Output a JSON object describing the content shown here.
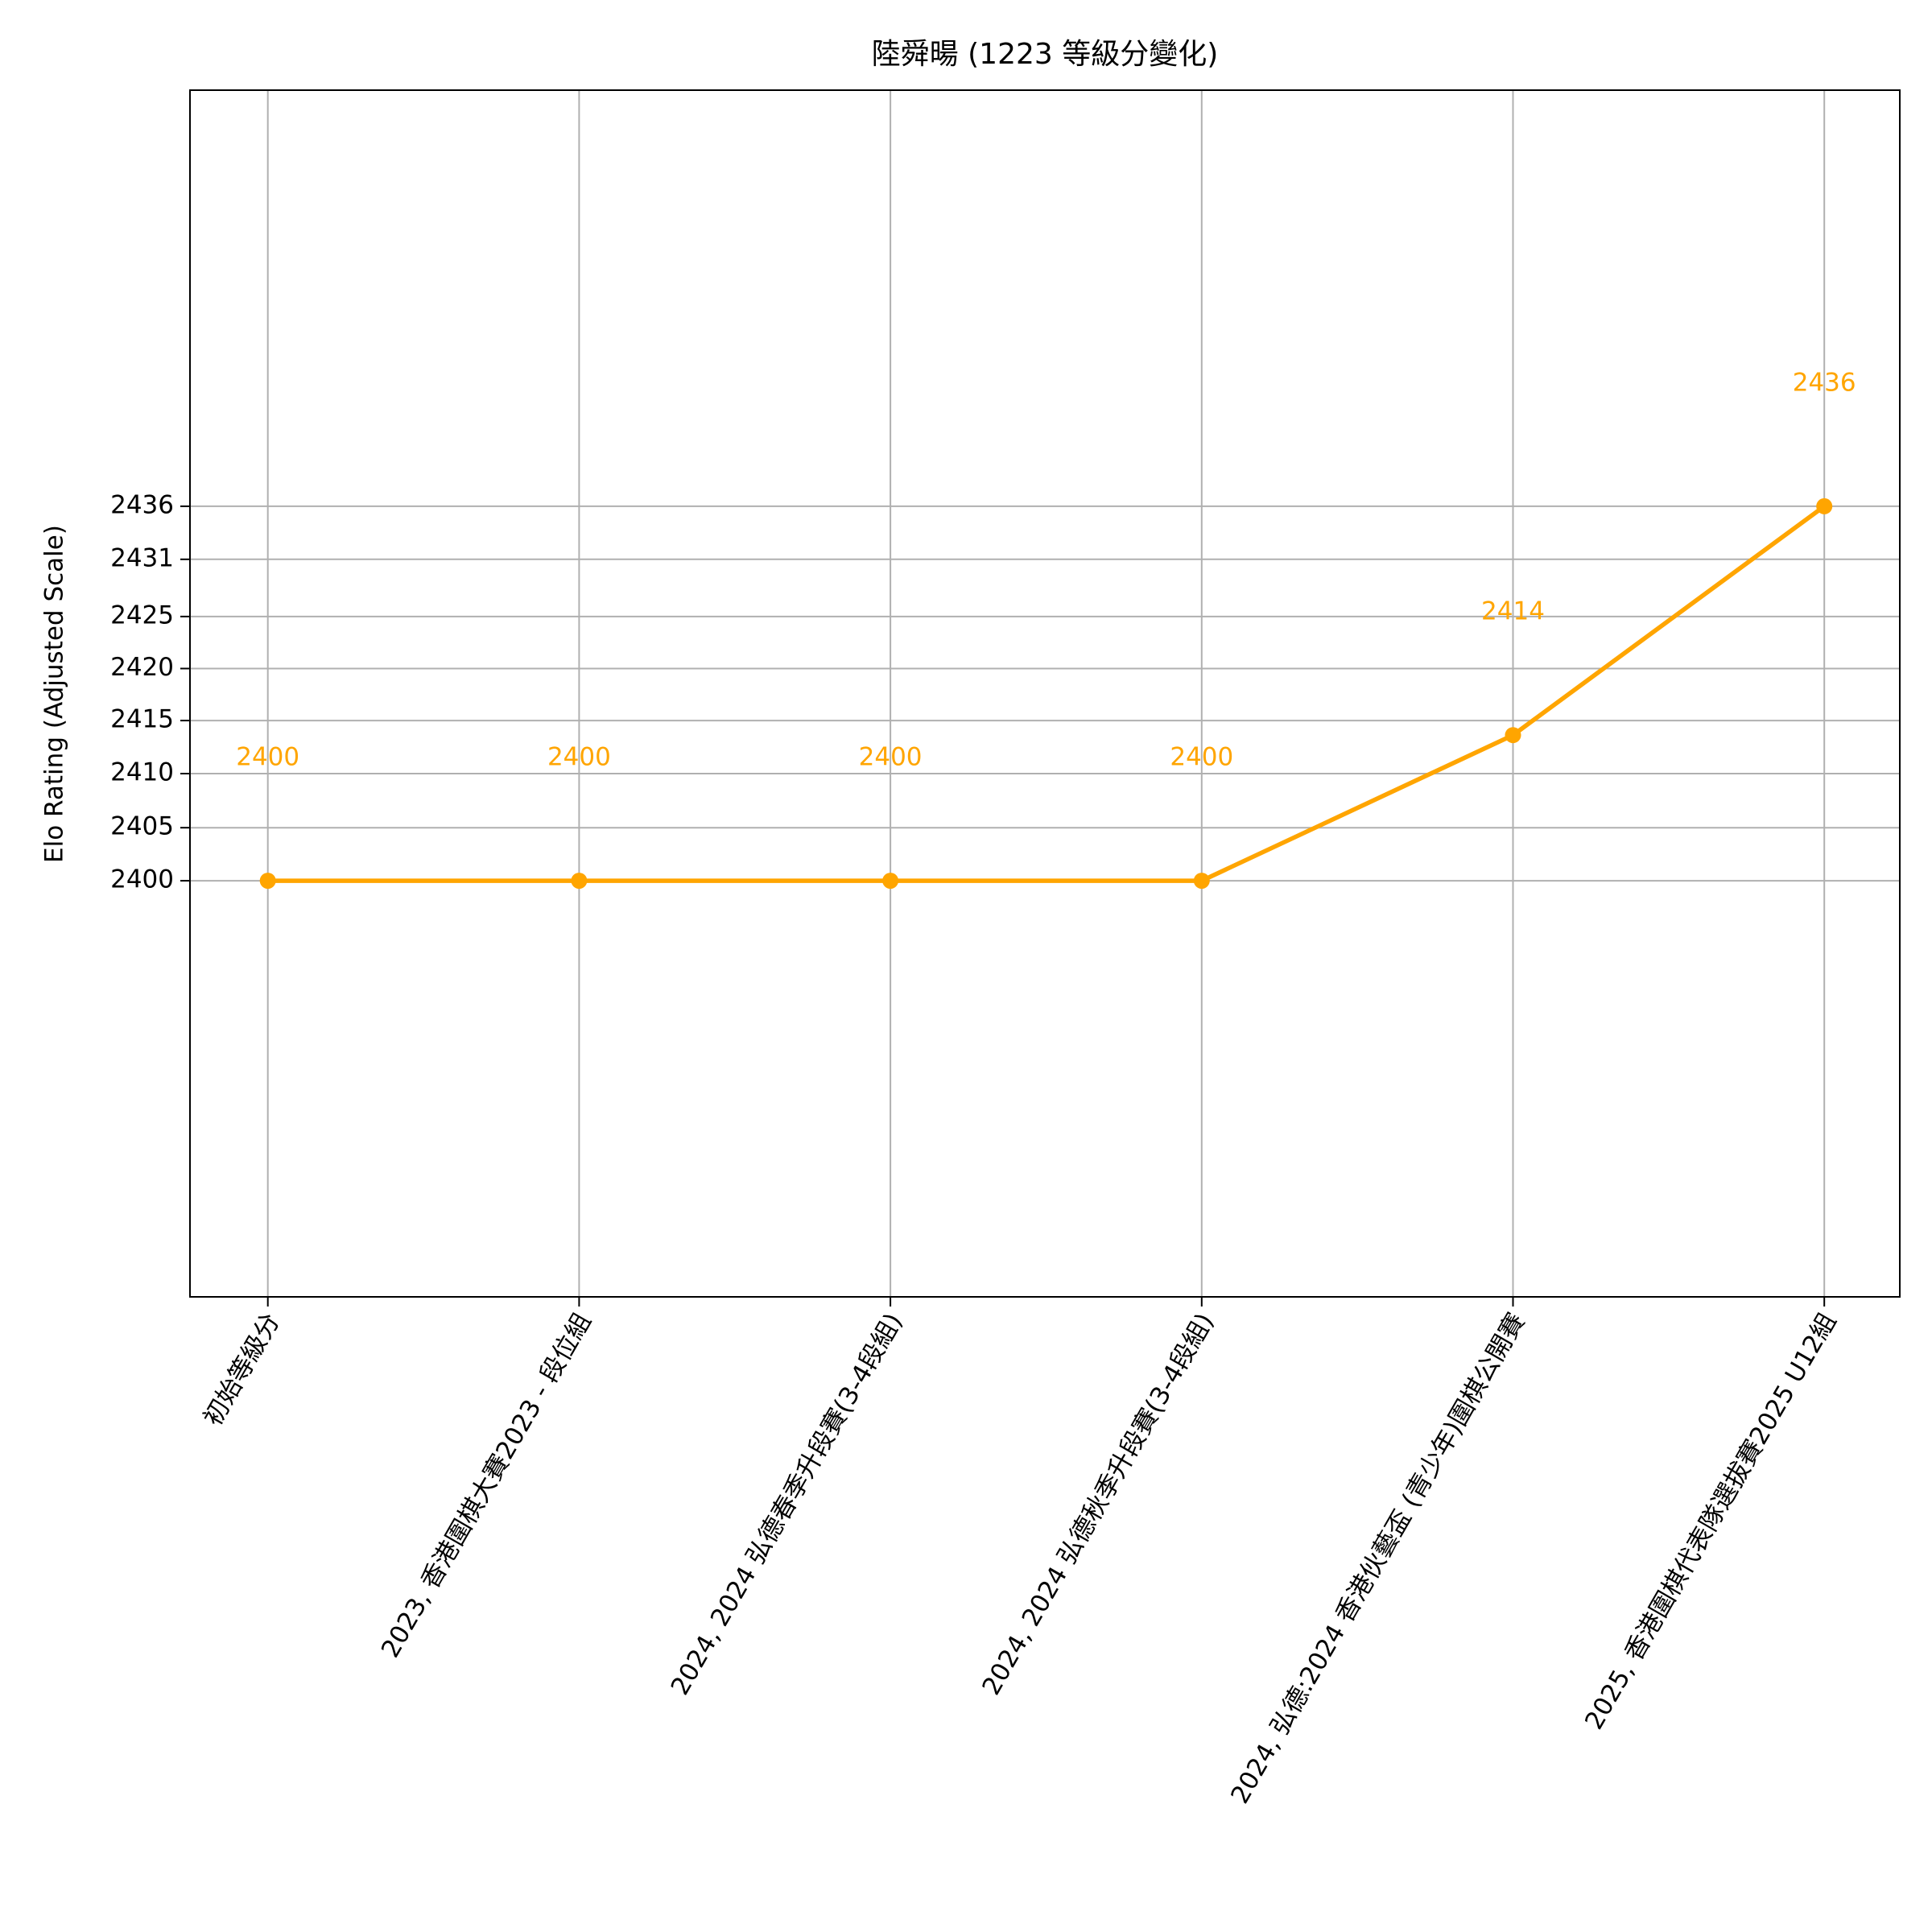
{
  "chart_data": {
    "type": "line",
    "title": "陸舜暘 (1223 等級分變化)",
    "y_label": "Elo Rating (Adjusted Scale)",
    "categories": [
      "初始等級分",
      "2023, 香港圍棋大賽2023 - 段位組",
      "2024, 2024 弘德春季升段賽(3-4段組)",
      "2024, 2024 弘德秋季升段賽(3-4段組)",
      "2024, 弘德:2024 香港伙藝盃 (青少年)圍棋公開賽",
      "2025, 香港圍棋代表隊選拔賽2025 U12組"
    ],
    "series": [
      {
        "name": "Elo Rating",
        "color": "#ffa500",
        "values": [
          2400,
          2400,
          2400,
          2400,
          2414,
          2436
        ]
      }
    ],
    "ylim": [
      2360,
      2476
    ],
    "yticks": [
      2400,
      {
        "value": 2405.1,
        "label": "2405"
      },
      {
        "value": 2410.3,
        "label": "2410"
      },
      {
        "value": 2415.4,
        "label": "2415"
      },
      {
        "value": 2420.4,
        "label": "2420"
      },
      {
        "value": 2425.4,
        "label": "2425"
      },
      {
        "value": 2430.9,
        "label": "2431"
      },
      2436
    ],
    "grid": true
  }
}
